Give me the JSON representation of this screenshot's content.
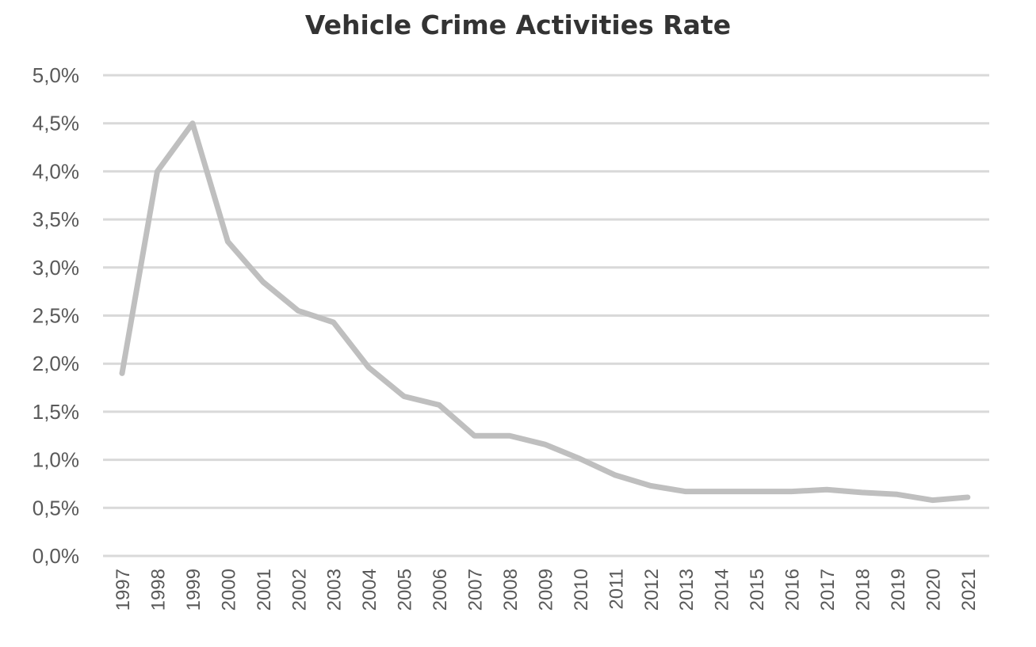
{
  "chart_data": {
    "type": "line",
    "title": "Vehicle Crime Activities Rate",
    "x": [
      "1997",
      "1998",
      "1999",
      "2000",
      "2001",
      "2002",
      "2003",
      "2004",
      "2005",
      "2006",
      "2007",
      "2008",
      "2009",
      "2010",
      "2011",
      "2012",
      "2013",
      "2014",
      "2015",
      "2016",
      "2017",
      "2018",
      "2019",
      "2020",
      "2021"
    ],
    "series": [
      {
        "values": [
          1.9,
          4.0,
          4.5,
          3.27,
          2.85,
          2.55,
          2.43,
          1.96,
          1.66,
          1.57,
          1.25,
          1.25,
          1.16,
          1.01,
          0.84,
          0.73,
          0.67,
          0.67,
          0.67,
          0.67,
          0.69,
          0.66,
          0.64,
          0.58,
          0.61
        ],
        "color": "#bfbfbf"
      }
    ],
    "ylim": [
      0,
      5
    ],
    "yticks": [
      0,
      0.5,
      1.0,
      1.5,
      2.0,
      2.5,
      3.0,
      3.5,
      4.0,
      4.5,
      5.0
    ],
    "ytick_labels": [
      "0,0%",
      "0,5%",
      "1,0%",
      "1,5%",
      "2,0%",
      "2,5%",
      "3,0%",
      "3,5%",
      "4,0%",
      "4,5%",
      "5,0%"
    ],
    "xlabel": "",
    "ylabel": "",
    "grid": true,
    "legend": "none"
  }
}
